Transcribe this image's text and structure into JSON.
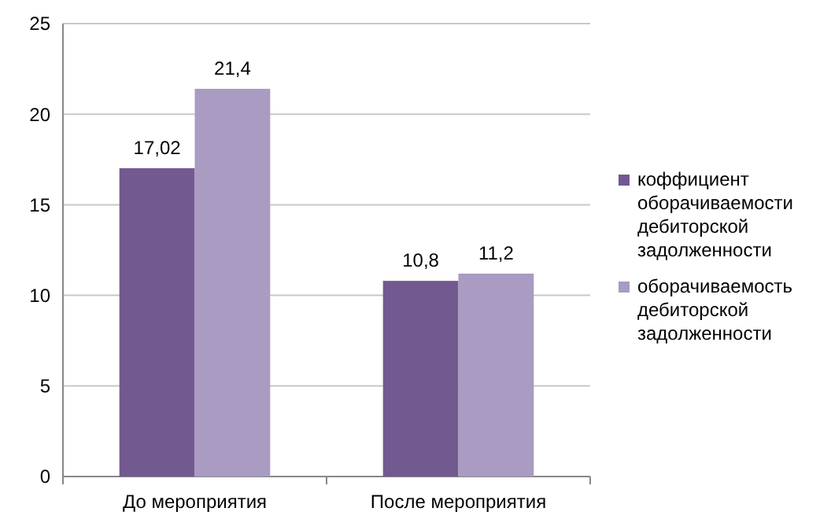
{
  "chart_data": {
    "type": "bar",
    "categories": [
      "До мероприятия",
      "После мероприятия"
    ],
    "series": [
      {
        "name": "коффициент оборачиваемости дебиторской задолженности",
        "color": "#725990",
        "values": [
          17.02,
          10.8
        ],
        "value_labels": [
          "17,02",
          "10,8"
        ]
      },
      {
        "name": "оборачиваемость дебиторской задолженности",
        "color": "#a99bc1",
        "values": [
          21.4,
          11.2
        ],
        "value_labels": [
          "21,4",
          "11,2"
        ]
      }
    ],
    "ylim": [
      0,
      25
    ],
    "yticks": [
      0,
      5,
      10,
      15,
      20,
      25
    ],
    "grid": "y",
    "legend": "right"
  }
}
